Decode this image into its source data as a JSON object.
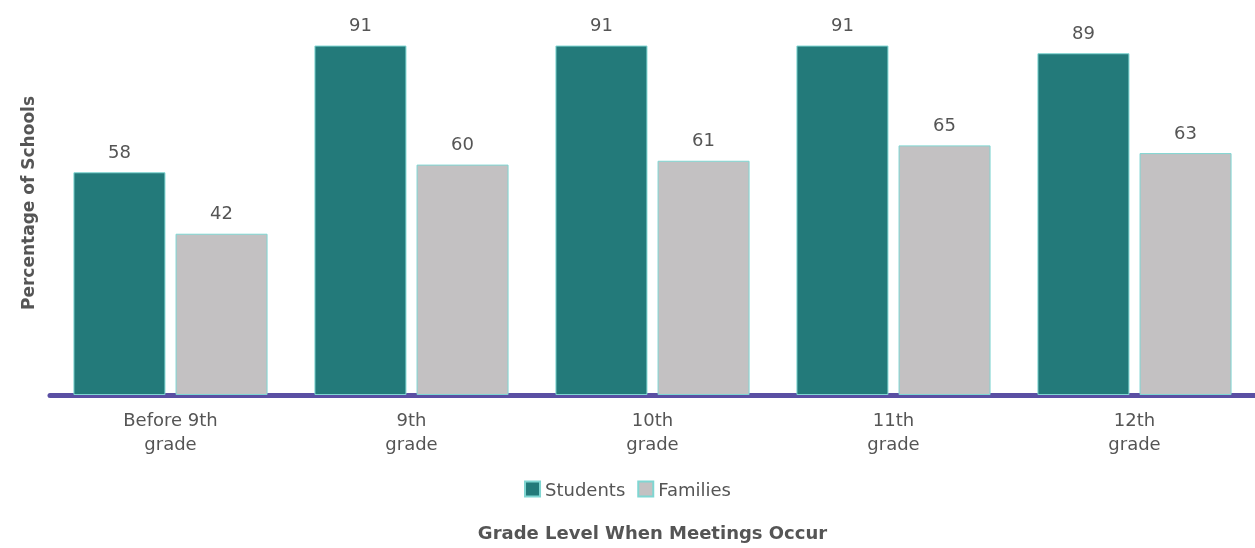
{
  "chart_data": {
    "type": "bar",
    "xlabel": "Grade Level When Meetings Occur",
    "ylabel": "Percentage of Schools",
    "categories": [
      "Before 9th\ngrade",
      "9th\ngrade",
      "10th\ngrade",
      "11th\ngrade",
      "12th\ngrade"
    ],
    "series": [
      {
        "name": "Students",
        "color": "#237a7a",
        "values": [
          58,
          91,
          91,
          91,
          89
        ]
      },
      {
        "name": "Families",
        "color": "#c3c1c2",
        "values": [
          42,
          60,
          61,
          65,
          63
        ]
      }
    ],
    "data_labels": true,
    "legend": "bottom",
    "grid": false,
    "tick_labels": "x"
  }
}
